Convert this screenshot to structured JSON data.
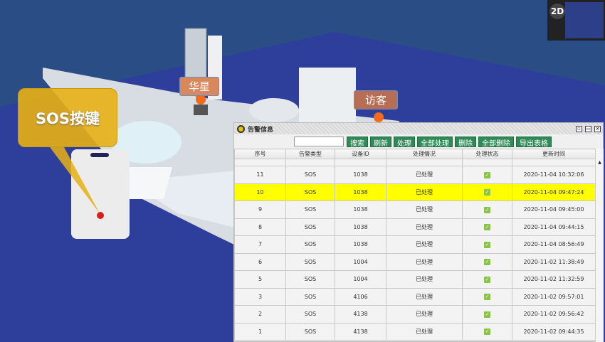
{
  "scene": {
    "labels": [
      {
        "text": "华星"
      },
      {
        "text": "访客"
      }
    ],
    "callout": "SOS按键",
    "minimap_button": "2D"
  },
  "dialog": {
    "title": "告警信息",
    "search_placeholder": "",
    "buttons": [
      "搜索",
      "刷新",
      "处理",
      "全部处理",
      "删除",
      "全部删除",
      "导出表格"
    ],
    "columns": [
      "序号",
      "告警类型",
      "设备ID",
      "处理情况",
      "处理状态",
      "更新时间"
    ],
    "rows": [
      {
        "id": "11",
        "type": "SOS",
        "device": "1038",
        "status": "已处理",
        "checked": true,
        "time": "2020-11-04 10:32:06"
      },
      {
        "id": "10",
        "type": "SOS",
        "device": "1038",
        "status": "已处理",
        "checked": true,
        "time": "2020-11-04 09:47:24",
        "selected": true
      },
      {
        "id": "9",
        "type": "SOS",
        "device": "1038",
        "status": "已处理",
        "checked": true,
        "time": "2020-11-04 09:45:00"
      },
      {
        "id": "8",
        "type": "SOS",
        "device": "1038",
        "status": "已处理",
        "checked": true,
        "time": "2020-11-04 09:44:15"
      },
      {
        "id": "7",
        "type": "SOS",
        "device": "1038",
        "status": "已处理",
        "checked": true,
        "time": "2020-11-04 08:56:49"
      },
      {
        "id": "6",
        "type": "SOS",
        "device": "1004",
        "status": "已处理",
        "checked": true,
        "time": "2020-11-02 11:38:49"
      },
      {
        "id": "5",
        "type": "SOS",
        "device": "1004",
        "status": "已处理",
        "checked": true,
        "time": "2020-11-02 11:32:59"
      },
      {
        "id": "3",
        "type": "SOS",
        "device": "4106",
        "status": "已处理",
        "checked": true,
        "time": "2020-11-02 09:57:01"
      },
      {
        "id": "2",
        "type": "SOS",
        "device": "4138",
        "status": "已处理",
        "checked": true,
        "time": "2020-11-02 09:56:42"
      },
      {
        "id": "1",
        "type": "SOS",
        "device": "4138",
        "status": "已处理",
        "checked": true,
        "time": "2020-11-02 09:44:35"
      }
    ],
    "selected_color": "#ffff00",
    "button_color": "#2e8b57"
  }
}
